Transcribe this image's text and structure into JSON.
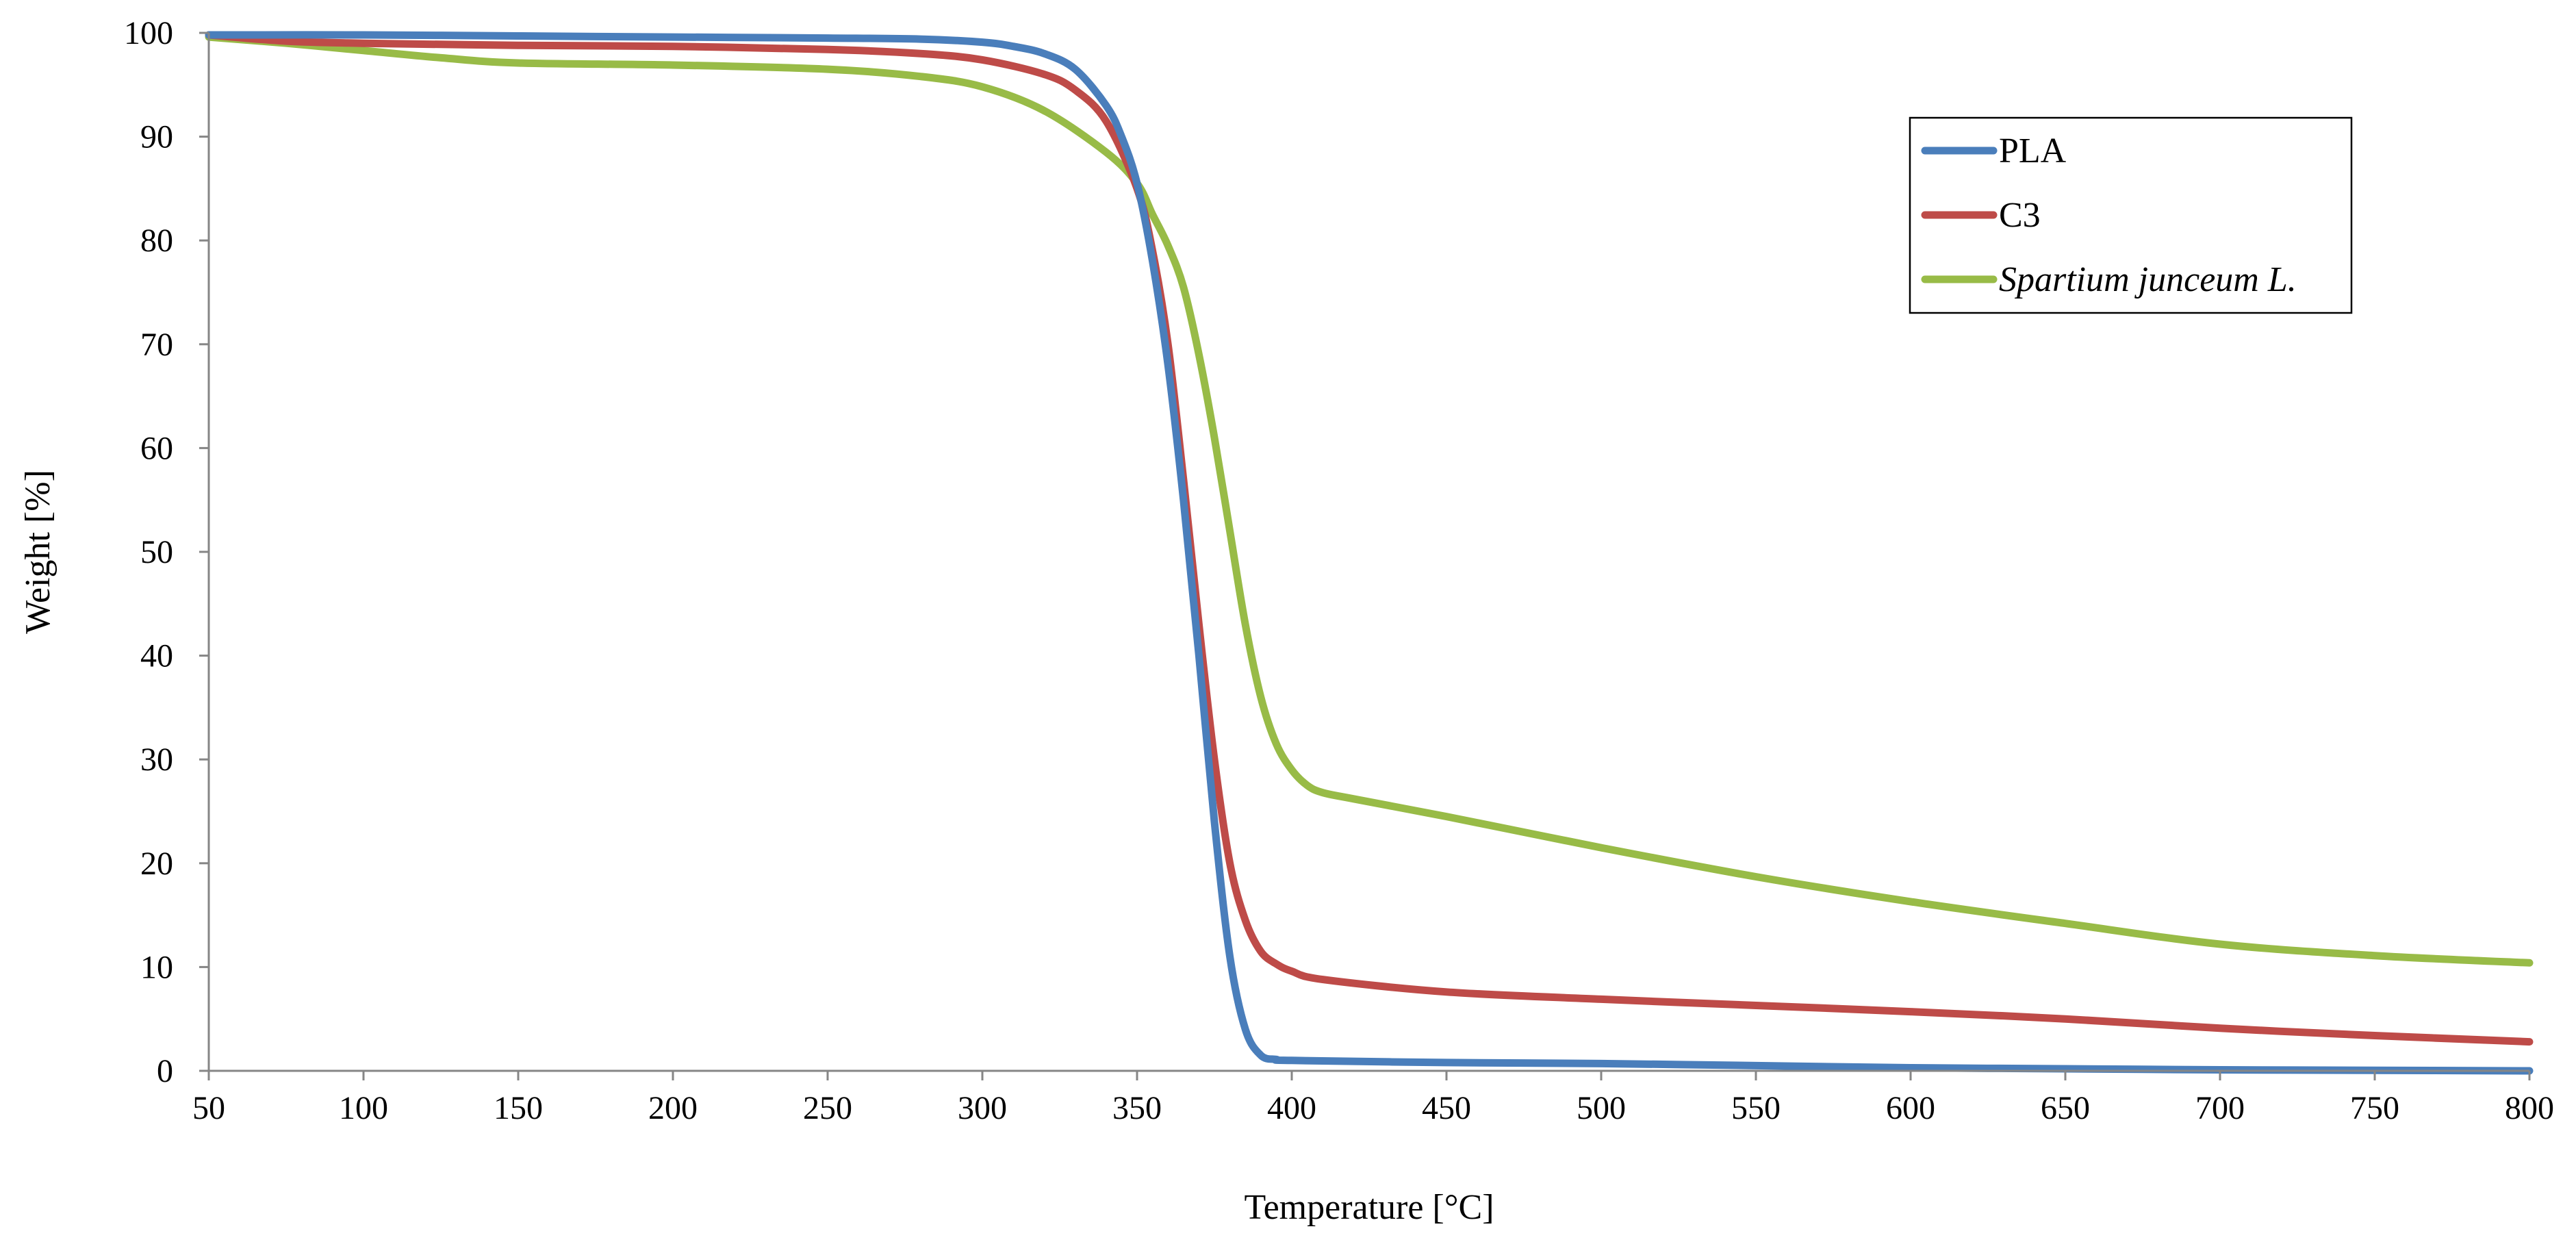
{
  "chart_data": {
    "type": "line",
    "title": "",
    "xlabel": "Temperature [°C]",
    "ylabel": "Weight [%]",
    "xlim": [
      50,
      800
    ],
    "ylim": [
      0,
      100
    ],
    "xticks": [
      50,
      100,
      150,
      200,
      250,
      300,
      350,
      400,
      450,
      500,
      550,
      600,
      650,
      700,
      750,
      800
    ],
    "yticks": [
      0,
      10,
      20,
      30,
      40,
      50,
      60,
      70,
      80,
      90,
      100
    ],
    "grid": false,
    "legend_position": "top-right",
    "series": [
      {
        "name": "PLA",
        "color": "#4a7ebb",
        "italic": false,
        "x": [
          50,
          100,
          150,
          200,
          250,
          280,
          300,
          310,
          320,
          330,
          340,
          345,
          350,
          355,
          360,
          365,
          370,
          375,
          380,
          385,
          390,
          395,
          400,
          450,
          500,
          550,
          600,
          650,
          700,
          750,
          800
        ],
        "y": [
          99.8,
          99.8,
          99.7,
          99.6,
          99.5,
          99.4,
          99.1,
          98.7,
          98.0,
          96.5,
          93.0,
          90.0,
          85.5,
          78.0,
          68.0,
          55.0,
          40.0,
          24.0,
          11.0,
          4.0,
          1.5,
          1.1,
          1.0,
          0.8,
          0.7,
          0.5,
          0.3,
          0.2,
          0.1,
          0.05,
          0.0
        ]
      },
      {
        "name": "C3",
        "color": "#be4b48",
        "italic": false,
        "x": [
          50,
          75,
          100,
          150,
          200,
          250,
          280,
          300,
          320,
          330,
          340,
          350,
          355,
          360,
          365,
          370,
          375,
          380,
          385,
          390,
          395,
          400,
          410,
          450,
          500,
          550,
          600,
          650,
          700,
          750,
          800
        ],
        "y": [
          99.8,
          99.2,
          99.0,
          98.8,
          98.7,
          98.4,
          98.0,
          97.4,
          96.0,
          94.5,
          91.5,
          85.0,
          79.0,
          70.0,
          57.0,
          43.0,
          30.0,
          20.0,
          14.5,
          11.5,
          10.3,
          9.6,
          8.8,
          7.6,
          6.9,
          6.3,
          5.7,
          5.0,
          4.1,
          3.4,
          2.8
        ]
      },
      {
        "name": "Spartium junceum L.",
        "color": "#98bb47",
        "italic": true,
        "x": [
          50,
          75,
          100,
          125,
          150,
          200,
          250,
          280,
          300,
          320,
          340,
          350,
          355,
          360,
          365,
          370,
          375,
          380,
          385,
          390,
          395,
          400,
          405,
          410,
          420,
          450,
          500,
          550,
          600,
          650,
          700,
          750,
          800
        ],
        "y": [
          99.6,
          99.0,
          98.3,
          97.6,
          97.1,
          96.9,
          96.5,
          95.8,
          94.8,
          92.5,
          88.5,
          85.5,
          82.5,
          79.5,
          75.5,
          69.0,
          61.0,
          52.0,
          43.0,
          36.0,
          31.5,
          29.0,
          27.5,
          26.8,
          26.2,
          24.5,
          21.5,
          18.7,
          16.3,
          14.2,
          12.2,
          11.1,
          10.4
        ]
      }
    ]
  }
}
